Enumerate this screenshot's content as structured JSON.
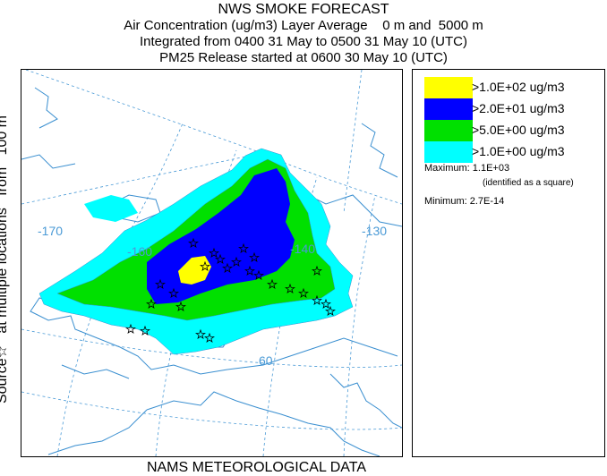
{
  "header": {
    "title": "NWS SMOKE FORECAST",
    "line2": "Air Concentration (ug/m3) Layer Average    0 m and  5000 m",
    "line3": "Integrated from 0400 31 May to 0500 31 May 10 (UTC)",
    "line4": "PM25 Release started at 0600 30 May 10 (UTC)"
  },
  "side_label": "Source☆   at multiple locations   from   100 m",
  "footer": "NAMS METEOROLOGICAL DATA",
  "map": {
    "graticule_labels": [
      "-170",
      "-160",
      "-140",
      "-130",
      "60"
    ],
    "colors": {
      "coast": "#3a8fd0",
      "graticule": "#4a9ad6",
      "source_star": "#000000"
    }
  },
  "legend": {
    "items": [
      {
        "label": ">1.0E+02 ug/m3",
        "color": "#ffff00"
      },
      {
        "label": ">2.0E+01 ug/m3",
        "color": "#0000ff"
      },
      {
        "label": ">5.0E+00 ug/m3",
        "color": "#00e000"
      },
      {
        "label": ">1.0E+00 ug/m3",
        "color": "#00ffff"
      }
    ],
    "maximum": "Maximum: 1.1E+03",
    "max_note": "(identified as a square)",
    "minimum": "Minimum: 2.7E-14"
  }
}
